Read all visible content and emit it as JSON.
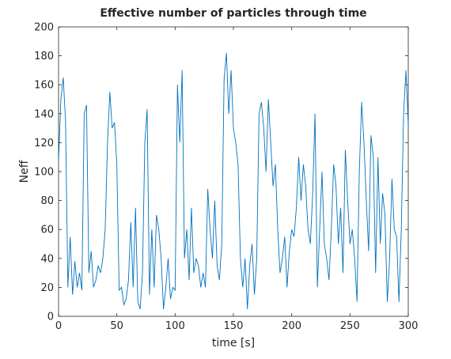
{
  "chart_data": {
    "type": "line",
    "title": "Effective number of particles through time",
    "xlabel": "time [s]",
    "ylabel": "Neff",
    "x": [
      0,
      2,
      4,
      6,
      8,
      10,
      12,
      14,
      16,
      18,
      20,
      22,
      24,
      26,
      28,
      30,
      32,
      34,
      36,
      38,
      40,
      42,
      44,
      46,
      48,
      50,
      52,
      54,
      56,
      58,
      60,
      62,
      64,
      66,
      68,
      70,
      72,
      74,
      76,
      78,
      80,
      82,
      84,
      86,
      88,
      90,
      92,
      94,
      96,
      98,
      100,
      102,
      104,
      106,
      108,
      110,
      112,
      114,
      116,
      118,
      120,
      122,
      124,
      126,
      128,
      130,
      132,
      134,
      136,
      138,
      140,
      142,
      144,
      146,
      148,
      150,
      152,
      154,
      156,
      158,
      160,
      162,
      164,
      166,
      168,
      170,
      172,
      174,
      176,
      178,
      180,
      182,
      184,
      186,
      188,
      190,
      192,
      194,
      196,
      198,
      200,
      202,
      204,
      206,
      208,
      210,
      212,
      214,
      216,
      218,
      220,
      222,
      224,
      226,
      228,
      230,
      232,
      234,
      236,
      238,
      240,
      242,
      244,
      246,
      248,
      250,
      252,
      254,
      256,
      258,
      260,
      262,
      264,
      266,
      268,
      270,
      272,
      274,
      276,
      278,
      280,
      282,
      284,
      286,
      288,
      290,
      292,
      294,
      296,
      298,
      300
    ],
    "series": [
      {
        "name": "Neff",
        "color": "#0072bd",
        "values": [
          107,
          150,
          165,
          135,
          20,
          55,
          15,
          38,
          20,
          30,
          18,
          140,
          146,
          30,
          45,
          20,
          25,
          35,
          30,
          40,
          60,
          120,
          155,
          130,
          134,
          105,
          18,
          20,
          8,
          12,
          25,
          65,
          20,
          75,
          10,
          5,
          30,
          120,
          143,
          15,
          60,
          20,
          70,
          60,
          40,
          5,
          20,
          40,
          12,
          20,
          18,
          160,
          120,
          170,
          40,
          60,
          25,
          75,
          30,
          40,
          35,
          20,
          30,
          20,
          88,
          60,
          40,
          80,
          35,
          25,
          50,
          164,
          182,
          140,
          170,
          130,
          120,
          105,
          40,
          20,
          40,
          5,
          35,
          50,
          15,
          40,
          140,
          148,
          130,
          100,
          150,
          120,
          90,
          105,
          60,
          30,
          40,
          55,
          20,
          45,
          60,
          55,
          75,
          110,
          80,
          105,
          90,
          60,
          50,
          85,
          140,
          20,
          60,
          100,
          50,
          40,
          25,
          60,
          105,
          90,
          50,
          75,
          30,
          115,
          80,
          50,
          60,
          40,
          10,
          100,
          148,
          120,
          80,
          45,
          125,
          110,
          30,
          110,
          50,
          85,
          70,
          10,
          40,
          95,
          60,
          55,
          10,
          60,
          140,
          170,
          132
        ]
      }
    ],
    "xlim": [
      0,
      300
    ],
    "ylim": [
      0,
      200
    ],
    "xticks": [
      0,
      50,
      100,
      150,
      200,
      250,
      300
    ],
    "yticks": [
      0,
      20,
      40,
      60,
      80,
      100,
      120,
      140,
      160,
      180,
      200
    ]
  }
}
